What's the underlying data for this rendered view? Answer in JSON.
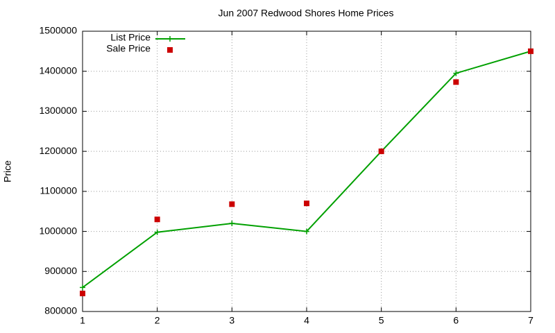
{
  "chart_data": {
    "type": "line",
    "title": "Jun 2007 Redwood Shores Home Prices",
    "y_label": "Price",
    "x": [
      1,
      2,
      3,
      4,
      5,
      6,
      7
    ],
    "series": [
      {
        "name": "List Price",
        "color": "#00a000",
        "style": "linespoints",
        "values": [
          860000,
          998000,
          1020000,
          1000000,
          1200000,
          1395000,
          1450000
        ]
      },
      {
        "name": "Sale Price",
        "color": "#cc0000",
        "style": "points",
        "values": [
          845000,
          1030000,
          1068000,
          1070000,
          1200000,
          1373000,
          1450000
        ]
      }
    ],
    "xlim": [
      1,
      7
    ],
    "xticks": [
      1,
      2,
      3,
      4,
      5,
      6,
      7
    ],
    "ylim": [
      800000,
      1500000
    ],
    "yticks": [
      800000,
      900000,
      1000000,
      1100000,
      1200000,
      1300000,
      1400000,
      1500000
    ],
    "grid": true,
    "legend": "top-left"
  }
}
